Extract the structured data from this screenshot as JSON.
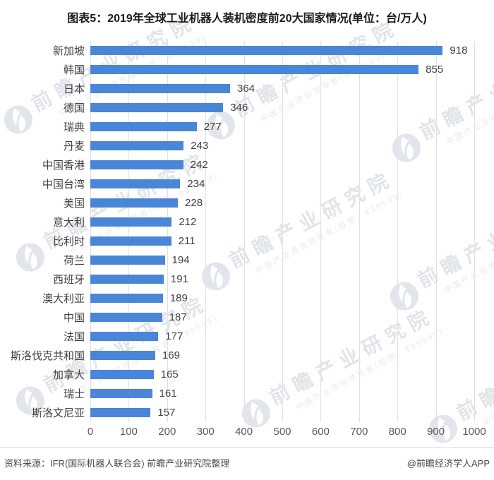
{
  "title": "图表5：2019年全球工业机器人装机密度前20大国家情况(单位：台/万人)",
  "chart_data": {
    "type": "bar",
    "orientation": "horizontal",
    "title": "图表5：2019年全球工业机器人装机密度前20大国家情况",
    "unit_label": "单位：台/万人",
    "categories": [
      "新加坡",
      "韩国",
      "日本",
      "德国",
      "瑞典",
      "丹麦",
      "中国香港",
      "中国台湾",
      "美国",
      "意大利",
      "比利时",
      "荷兰",
      "西班牙",
      "澳大利亚",
      "中国",
      "法国",
      "斯洛伐克共和国",
      "加拿大",
      "瑞士",
      "斯洛文尼亚"
    ],
    "values": [
      918,
      855,
      364,
      346,
      277,
      243,
      242,
      234,
      228,
      212,
      211,
      194,
      191,
      189,
      187,
      177,
      169,
      165,
      161,
      157
    ],
    "xlim": [
      0,
      1000
    ],
    "x_ticks": [
      0,
      100,
      200,
      300,
      400,
      500,
      600,
      700,
      800,
      900,
      1000
    ],
    "grid": true,
    "legend": "none",
    "value_labels": true,
    "bar_color": "#4a86d8",
    "gridline_color": "#e0e0e0",
    "category_label_color": "#404040",
    "value_label_color": "#404040",
    "tick_label_color": "#595959"
  },
  "watermark": {
    "brand": "前瞻产业研究院",
    "tagline": "中国产业咨询领导者(股票：839599)",
    "logo": "qianzhan-swoosh-icon"
  },
  "footer": {
    "source": "资料来源：IFR(国际机器人联合会) 前瞻产业研究院整理",
    "credit": "@前瞻经济学人APP"
  }
}
